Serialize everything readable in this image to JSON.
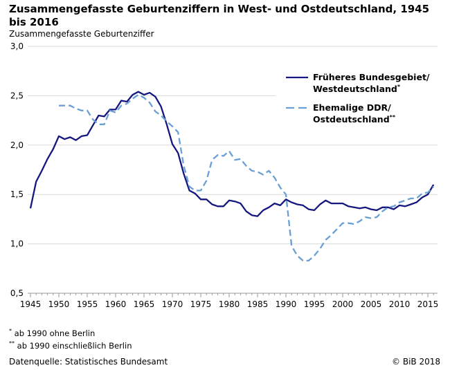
{
  "chart_data": {
    "type": "line",
    "title": "Zusammengefasste Geburtenziffern in West- und Ostdeutschland, 1945 bis 2016",
    "ylabel": "Zusammengefasste Geburtenziffer",
    "xlabel": "",
    "ylim": [
      0.5,
      3.0
    ],
    "xlim": [
      1945,
      2016
    ],
    "yticks": [
      "0,5",
      "1,0",
      "1,5",
      "2,0",
      "2,5",
      "3,0"
    ],
    "xticks": [
      "1945",
      "1950",
      "1955",
      "1960",
      "1965",
      "1970",
      "1975",
      "1980",
      "1985",
      "1990",
      "1995",
      "2000",
      "2005",
      "2010",
      "2015"
    ],
    "grid": "horizontal",
    "legend_position": "top-right",
    "series": [
      {
        "name": "Früheres Bundesgebiet/ Westdeutschland",
        "legend_line1": "Früheres Bundesgebiet/",
        "legend_line2": "Westdeutschland",
        "legend_mark": "*",
        "color": "#15177f",
        "style": "solid",
        "x_start": 1945,
        "values": [
          1.36,
          1.63,
          1.74,
          1.86,
          1.96,
          2.09,
          2.06,
          2.08,
          2.05,
          2.09,
          2.1,
          2.2,
          2.3,
          2.29,
          2.36,
          2.36,
          2.45,
          2.44,
          2.51,
          2.54,
          2.51,
          2.53,
          2.49,
          2.39,
          2.21,
          2.01,
          1.92,
          1.71,
          1.54,
          1.51,
          1.45,
          1.45,
          1.4,
          1.38,
          1.38,
          1.44,
          1.43,
          1.41,
          1.33,
          1.29,
          1.28,
          1.34,
          1.37,
          1.41,
          1.39,
          1.45,
          1.42,
          1.4,
          1.39,
          1.35,
          1.34,
          1.4,
          1.44,
          1.41,
          1.41,
          1.41,
          1.38,
          1.37,
          1.36,
          1.37,
          1.35,
          1.34,
          1.37,
          1.37,
          1.35,
          1.39,
          1.38,
          1.4,
          1.42,
          1.47,
          1.5,
          1.6
        ]
      },
      {
        "name": "Ehemalige DDR/ Ostdeutschland",
        "legend_line1": "Ehemalige DDR/",
        "legend_line2": "Ostdeutschland",
        "legend_mark": "**",
        "color": "#6a9fd4",
        "style": "dashed",
        "x_start": 1950,
        "values": [
          2.4,
          2.4,
          2.4,
          2.37,
          2.35,
          2.35,
          2.26,
          2.21,
          2.21,
          2.35,
          2.33,
          2.4,
          2.42,
          2.47,
          2.51,
          2.48,
          2.43,
          2.34,
          2.3,
          2.24,
          2.19,
          2.13,
          1.79,
          1.58,
          1.54,
          1.54,
          1.64,
          1.85,
          1.9,
          1.89,
          1.94,
          1.85,
          1.86,
          1.79,
          1.74,
          1.73,
          1.7,
          1.74,
          1.67,
          1.57,
          1.5,
          0.98,
          0.88,
          0.83,
          0.83,
          0.88,
          0.95,
          1.04,
          1.09,
          1.15,
          1.21,
          1.21,
          1.2,
          1.23,
          1.27,
          1.26,
          1.27,
          1.33,
          1.37,
          1.38,
          1.42,
          1.44,
          1.46,
          1.46,
          1.51,
          1.52,
          1.58
        ]
      }
    ]
  },
  "footnotes": {
    "note1_mark": "*",
    "note1": " ab 1990 ohne Berlin",
    "note2_mark": "**",
    "note2": " ab 1990 einschließlich Berlin"
  },
  "source": "Datenquelle: Statistisches Bundesamt",
  "copyright": "© BiB 2018"
}
